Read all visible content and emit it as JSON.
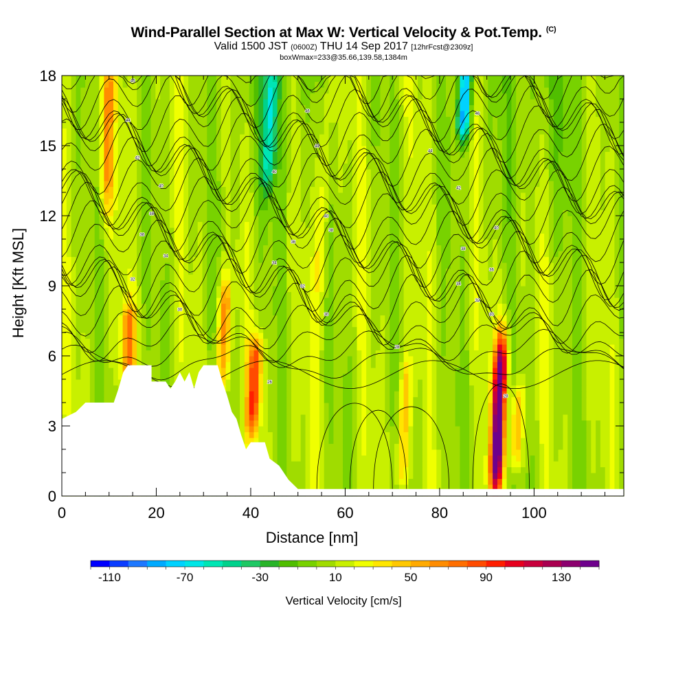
{
  "header": {
    "title": "Wind-Parallel Section at Max W: Vertical Velocity & Pot.Temp.",
    "title_mark": "(C)",
    "valid_prefix": "Valid 1500 JST",
    "valid_utc": "(0600Z)",
    "valid_date": "THU 14 Sep 2017",
    "forecast": "[12hrFcst@2309z]",
    "box_info": "boxWmax=233@35.66,139.58,1384m"
  },
  "chart_data": {
    "type": "heatmap",
    "xlabel": "Distance [nm]",
    "ylabel": "Height [Kft MSL]",
    "xlim": [
      0,
      119
    ],
    "ylim": [
      0,
      18
    ],
    "x_ticks": [
      0,
      20,
      40,
      60,
      80,
      100
    ],
    "y_ticks": [
      0,
      3,
      6,
      9,
      12,
      15,
      18
    ],
    "grid": false,
    "colorbar": {
      "label": "Vertical Velocity [cm/s]",
      "placement": "bottom",
      "min": -120,
      "max": 150,
      "step": 10,
      "tick_labels": [
        "-110",
        "-70",
        "-30",
        "10",
        "50",
        "90",
        "130"
      ],
      "tick_values": [
        -110,
        -70,
        -30,
        10,
        50,
        90,
        130
      ],
      "colors": [
        "#0000ff",
        "#0a3cff",
        "#1e78ff",
        "#00aaff",
        "#00d2ff",
        "#00e6e6",
        "#00e6b4",
        "#00d28c",
        "#1ec864",
        "#28b428",
        "#50be00",
        "#78d200",
        "#a0dc00",
        "#c8f000",
        "#f0ff00",
        "#ffe600",
        "#ffc800",
        "#ffaa00",
        "#ff8c00",
        "#ff6e00",
        "#ff4b00",
        "#ff1e00",
        "#e6001e",
        "#c8003c",
        "#aa0050",
        "#8c006e",
        "#6e008c"
      ]
    },
    "features": [
      {
        "x": 9,
        "z_range": [
          13,
          18
        ],
        "w": 55
      },
      {
        "x": 14,
        "z_range": [
          5.5,
          7.5
        ],
        "w": 60
      },
      {
        "x": 34,
        "z_range": [
          5.5,
          8.5
        ],
        "w": 60
      },
      {
        "x": 41,
        "z_range": [
          3.5,
          6
        ],
        "w": 85
      },
      {
        "x": 54,
        "z_range": [
          9,
          18
        ],
        "w": 30
      },
      {
        "x": 73,
        "z_range": [
          1,
          5
        ],
        "w": 45
      },
      {
        "x": 93,
        "z_range": [
          1,
          6
        ],
        "w": 150
      },
      {
        "x": 97,
        "z_range": [
          2,
          4
        ],
        "w": 50
      },
      {
        "x": 83,
        "z_range": [
          16,
          18
        ],
        "w": -90
      },
      {
        "x": 42,
        "z_range": [
          14,
          18
        ],
        "w": -50
      }
    ],
    "theta_contours": {
      "units": "C",
      "labels": [
        {
          "x": 15,
          "z": 17.8,
          "text": "46"
        },
        {
          "x": 14,
          "z": 16.1,
          "text": "44"
        },
        {
          "x": 16,
          "z": 14.5,
          "text": "42"
        },
        {
          "x": 21,
          "z": 13.3,
          "text": "40"
        },
        {
          "x": 19,
          "z": 12.1,
          "text": "38"
        },
        {
          "x": 17,
          "z": 11.2,
          "text": "36"
        },
        {
          "x": 22,
          "z": 10.3,
          "text": "34"
        },
        {
          "x": 15,
          "z": 9.3,
          "text": "32"
        },
        {
          "x": 25,
          "z": 8.0,
          "text": "30"
        },
        {
          "x": 52,
          "z": 16.5,
          "text": "46"
        },
        {
          "x": 54,
          "z": 15.0,
          "text": "44"
        },
        {
          "x": 45,
          "z": 13.9,
          "text": "40"
        },
        {
          "x": 56,
          "z": 12.0,
          "text": "40"
        },
        {
          "x": 57,
          "z": 11.4,
          "text": "38"
        },
        {
          "x": 49,
          "z": 10.9,
          "text": "36"
        },
        {
          "x": 45,
          "z": 10.0,
          "text": "34"
        },
        {
          "x": 51,
          "z": 9.0,
          "text": "32"
        },
        {
          "x": 56,
          "z": 7.8,
          "text": "30"
        },
        {
          "x": 71,
          "z": 6.4,
          "text": "28"
        },
        {
          "x": 44,
          "z": 4.9,
          "text": "26"
        },
        {
          "x": 88,
          "z": 16.4,
          "text": "46"
        },
        {
          "x": 78,
          "z": 14.8,
          "text": "44"
        },
        {
          "x": 84,
          "z": 13.2,
          "text": "42"
        },
        {
          "x": 92,
          "z": 11.5,
          "text": "40"
        },
        {
          "x": 85,
          "z": 10.6,
          "text": "38"
        },
        {
          "x": 91,
          "z": 9.7,
          "text": "36"
        },
        {
          "x": 84,
          "z": 9.1,
          "text": "34"
        },
        {
          "x": 88,
          "z": 8.4,
          "text": "32"
        },
        {
          "x": 91,
          "z": 7.8,
          "text": "30"
        },
        {
          "x": 94,
          "z": 4.3,
          "text": "28"
        }
      ]
    },
    "terrain_kft": [
      [
        0,
        3.3
      ],
      [
        3,
        3.6
      ],
      [
        5,
        4.0
      ],
      [
        11,
        4.0
      ],
      [
        12,
        4.6
      ],
      [
        13,
        5.3
      ],
      [
        14,
        5.6
      ],
      [
        19,
        5.6
      ],
      [
        19,
        4.9
      ],
      [
        22,
        4.9
      ],
      [
        23,
        4.6
      ],
      [
        24,
        4.9
      ],
      [
        25,
        5.3
      ],
      [
        26,
        4.9
      ],
      [
        27,
        5.3
      ],
      [
        28,
        4.6
      ],
      [
        29,
        5.3
      ],
      [
        30,
        5.6
      ],
      [
        33,
        5.6
      ],
      [
        34,
        4.9
      ],
      [
        35,
        4.3
      ],
      [
        36,
        3.6
      ],
      [
        37,
        3.3
      ],
      [
        38,
        2.6
      ],
      [
        39,
        2.0
      ],
      [
        40,
        2.3
      ],
      [
        43,
        2.3
      ],
      [
        44,
        1.6
      ],
      [
        46,
        1.3
      ],
      [
        47,
        1.0
      ],
      [
        48,
        0.7
      ],
      [
        50,
        0.3
      ],
      [
        119,
        0.3
      ]
    ]
  }
}
